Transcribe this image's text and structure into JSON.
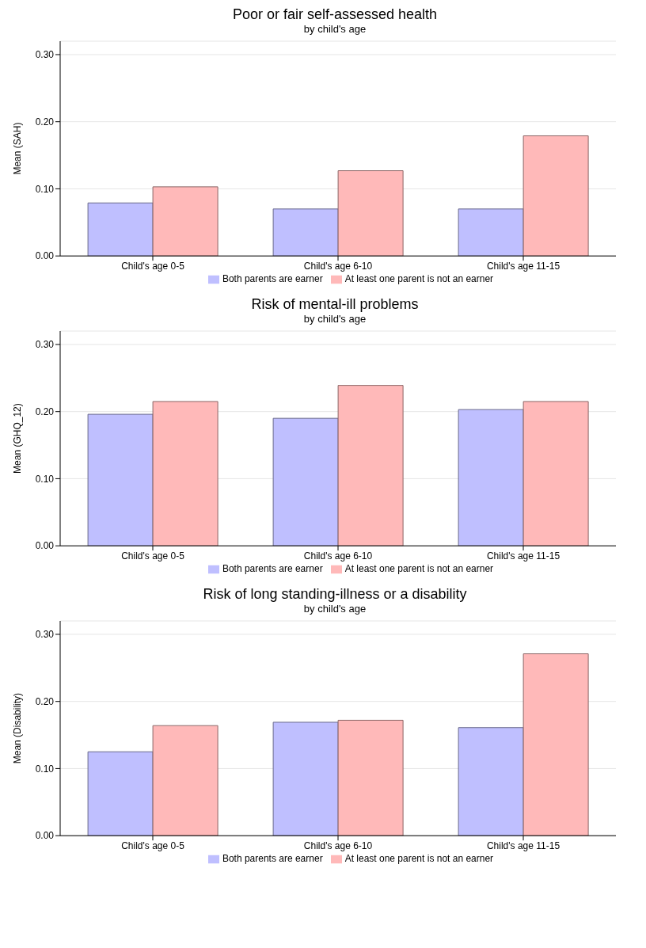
{
  "chart_data": [
    {
      "type": "bar",
      "title": "Poor or fair self-assessed health",
      "subtitle": "by child's age",
      "ylabel": "Mean (SAH)",
      "categories": [
        "Child's age 0-5",
        "Child's age 6-10",
        "Child's age 11-15"
      ],
      "series": [
        {
          "name": "Both parents are earner",
          "color": "#bfbfff",
          "values": [
            0.079,
            0.07,
            0.07
          ]
        },
        {
          "name": "At least one parent is not an earner",
          "color": "#ffb9b9",
          "values": [
            0.103,
            0.127,
            0.179
          ]
        }
      ],
      "ylim": [
        0,
        0.32
      ],
      "yticks": [
        {
          "value": 0,
          "label": "0.00"
        },
        {
          "value": 0.1,
          "label": "0.10"
        },
        {
          "value": 0.2,
          "label": "0.20"
        },
        {
          "value": 0.3,
          "label": "0.30"
        }
      ],
      "grid": "y",
      "legend": "bottom"
    },
    {
      "type": "bar",
      "title": "Risk of mental-ill problems",
      "subtitle": "by child's age",
      "ylabel": "Mean (GHQ_12)",
      "categories": [
        "Child's age 0-5",
        "Child's age 6-10",
        "Child's age 11-15"
      ],
      "series": [
        {
          "name": "Both parents are earner",
          "color": "#bfbfff",
          "values": [
            0.196,
            0.19,
            0.203
          ]
        },
        {
          "name": "At least one parent is not an earner",
          "color": "#ffb9b9",
          "values": [
            0.215,
            0.239,
            0.215
          ]
        }
      ],
      "ylim": [
        0,
        0.32
      ],
      "yticks": [
        {
          "value": 0,
          "label": "0.00"
        },
        {
          "value": 0.1,
          "label": "0.10"
        },
        {
          "value": 0.2,
          "label": "0.20"
        },
        {
          "value": 0.3,
          "label": "0.30"
        }
      ],
      "grid": "y",
      "legend": "bottom"
    },
    {
      "type": "bar",
      "title": "Risk of long standing-illness or a disability",
      "subtitle": "by child's age",
      "ylabel": "Mean (Disability)",
      "categories": [
        "Child's age 0-5",
        "Child's age 6-10",
        "Child's age 11-15"
      ],
      "series": [
        {
          "name": "Both parents are earner",
          "color": "#bfbfff",
          "values": [
            0.125,
            0.169,
            0.161
          ]
        },
        {
          "name": "At least one parent is not an earner",
          "color": "#ffb9b9",
          "values": [
            0.164,
            0.172,
            0.271
          ]
        }
      ],
      "ylim": [
        0,
        0.32
      ],
      "yticks": [
        {
          "value": 0,
          "label": "0.00"
        },
        {
          "value": 0.1,
          "label": "0.10"
        },
        {
          "value": 0.2,
          "label": "0.20"
        },
        {
          "value": 0.3,
          "label": "0.30"
        }
      ],
      "grid": "y",
      "legend": "bottom"
    }
  ]
}
